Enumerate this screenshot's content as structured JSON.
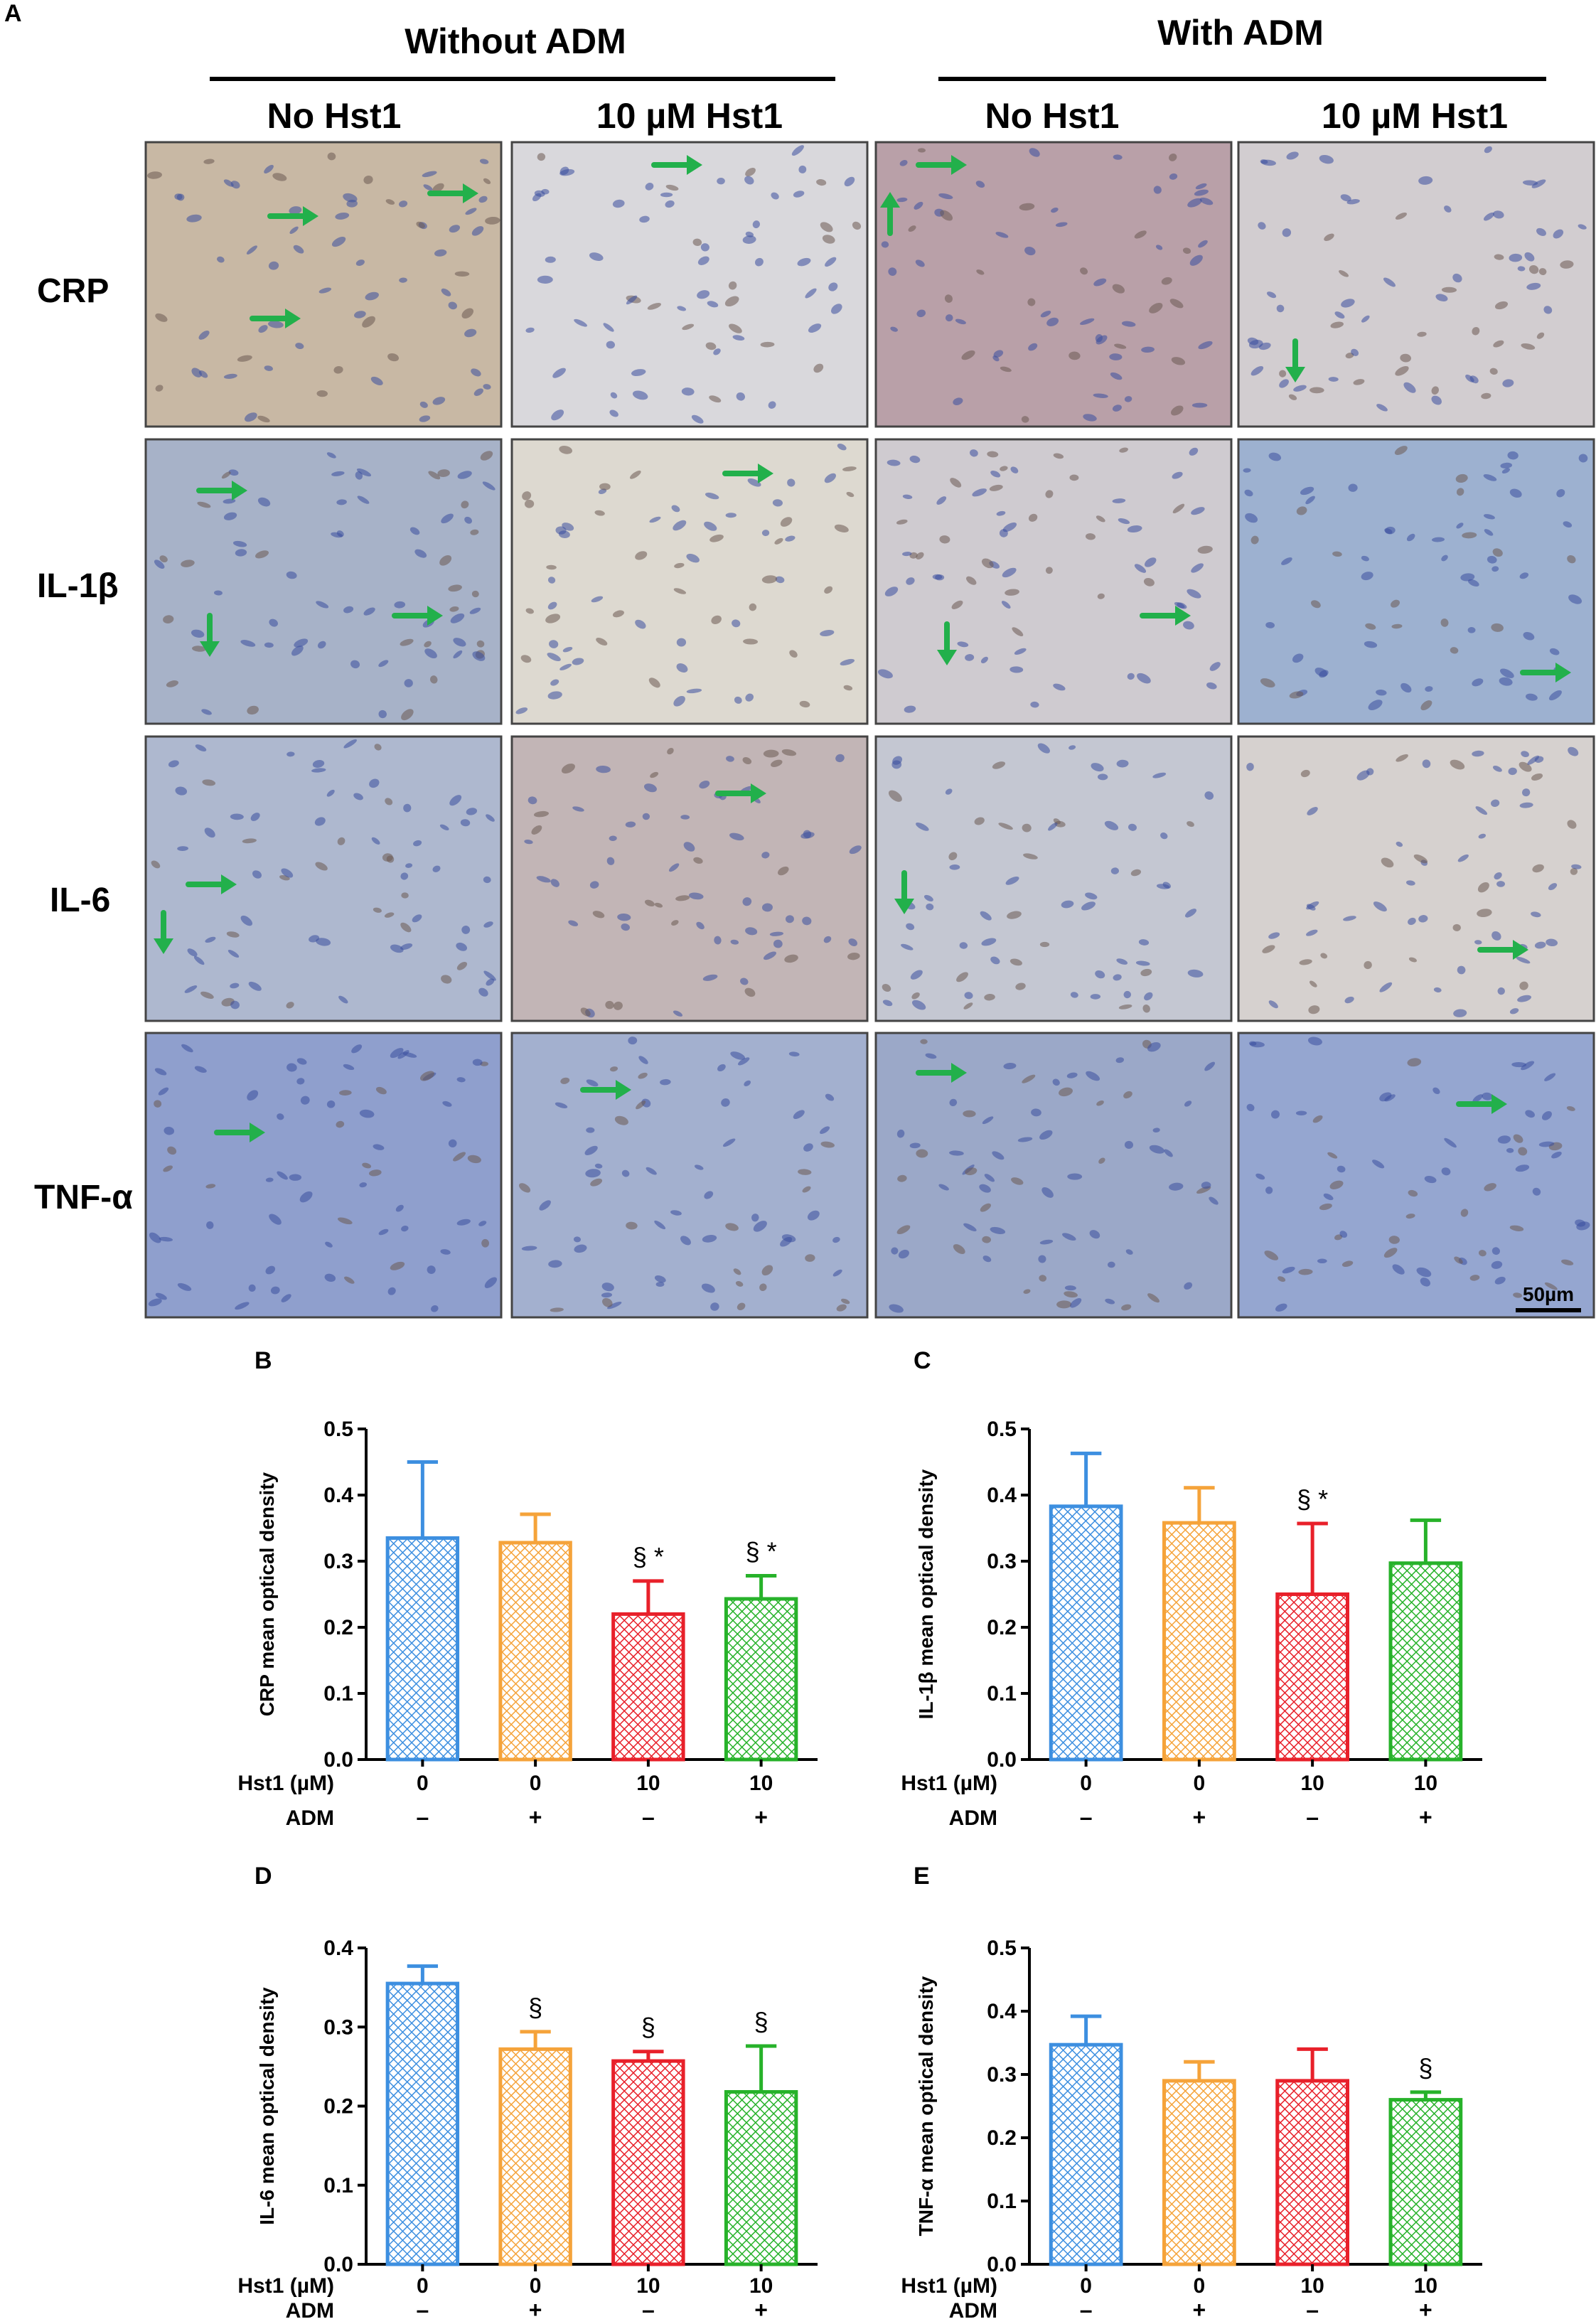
{
  "panel_a": {
    "label": "A",
    "groups": [
      "Without ADM",
      "With ADM"
    ],
    "columns": [
      "No Hst1",
      "10 µM Hst1",
      "No Hst1",
      "10 µM Hst1"
    ],
    "rows": [
      "CRP",
      "IL-1β",
      "IL-6",
      "TNF-α"
    ],
    "scale_bar": "50µm",
    "arrow_color": "#22b04b",
    "tiles": [
      [
        {
          "tint": "#c8b8a4",
          "arrows": [
            [
              0.35,
              0.26,
              "right"
            ],
            [
              0.8,
              0.18,
              "right"
            ],
            [
              0.3,
              0.62,
              "right"
            ]
          ]
        },
        {
          "tint": "#d9d8dc",
          "arrows": [
            [
              0.4,
              0.08,
              "right"
            ]
          ]
        },
        {
          "tint": "#b9a0a8",
          "arrows": [
            [
              0.12,
              0.08,
              "right"
            ],
            [
              0.04,
              0.32,
              "up"
            ]
          ]
        },
        {
          "tint": "#d2cdd0",
          "arrows": [
            [
              0.16,
              0.7,
              "down"
            ]
          ]
        }
      ],
      [
        {
          "tint": "#a7b2c8",
          "arrows": [
            [
              0.15,
              0.18,
              "right"
            ],
            [
              0.18,
              0.62,
              "down"
            ],
            [
              0.7,
              0.62,
              "right"
            ]
          ]
        },
        {
          "tint": "#ddd9d0",
          "arrows": [
            [
              0.6,
              0.12,
              "right"
            ]
          ]
        },
        {
          "tint": "#cfcbd0",
          "arrows": [
            [
              0.2,
              0.65,
              "down"
            ],
            [
              0.75,
              0.62,
              "right"
            ]
          ]
        },
        {
          "tint": "#9db1d0",
          "arrows": [
            [
              0.8,
              0.82,
              "right"
            ]
          ]
        }
      ],
      [
        {
          "tint": "#aeb8cf",
          "arrows": [
            [
              0.05,
              0.62,
              "down"
            ],
            [
              0.12,
              0.52,
              "right"
            ]
          ]
        },
        {
          "tint": "#c2b5b6",
          "arrows": [
            [
              0.58,
              0.2,
              "right"
            ]
          ]
        },
        {
          "tint": "#c4c7d2",
          "arrows": [
            [
              0.08,
              0.48,
              "down"
            ]
          ]
        },
        {
          "tint": "#d6d1cf",
          "arrows": [
            [
              0.68,
              0.75,
              "right"
            ]
          ]
        }
      ],
      [
        {
          "tint": "#8f9fcd",
          "arrows": [
            [
              0.2,
              0.35,
              "right"
            ]
          ]
        },
        {
          "tint": "#a3b0cf",
          "arrows": [
            [
              0.2,
              0.2,
              "right"
            ]
          ]
        },
        {
          "tint": "#9ba8c8",
          "arrows": [
            [
              0.12,
              0.14,
              "right"
            ]
          ]
        },
        {
          "tint": "#95a6d0",
          "arrows": [
            [
              0.62,
              0.25,
              "right"
            ]
          ]
        }
      ]
    ]
  },
  "chart_data": [
    {
      "panel": "B",
      "type": "bar",
      "ylabel": "CRP mean optical density",
      "ylim": [
        0,
        0.5
      ],
      "yticks": [
        "0.0",
        "0.1",
        "0.2",
        "0.3",
        "0.4",
        "0.5"
      ],
      "values": [
        0.335,
        0.328,
        0.22,
        0.243
      ],
      "errors": [
        0.115,
        0.043,
        0.05,
        0.035
      ],
      "annotations": [
        "",
        "",
        "§ *",
        "§ *"
      ]
    },
    {
      "panel": "C",
      "type": "bar",
      "ylabel": "IL-1β mean optical density",
      "ylim": [
        0,
        0.5
      ],
      "yticks": [
        "0.0",
        "0.1",
        "0.2",
        "0.3",
        "0.4",
        "0.5"
      ],
      "values": [
        0.383,
        0.358,
        0.25,
        0.297
      ],
      "errors": [
        0.08,
        0.053,
        0.107,
        0.065
      ],
      "annotations": [
        "",
        "",
        "§ *",
        ""
      ]
    },
    {
      "panel": "D",
      "type": "bar",
      "ylabel": "IL-6 mean optical density",
      "ylim": [
        0,
        0.4
      ],
      "yticks": [
        "0.0",
        "0.1",
        "0.2",
        "0.3",
        "0.4"
      ],
      "values": [
        0.355,
        0.272,
        0.257,
        0.218
      ],
      "errors": [
        0.022,
        0.022,
        0.012,
        0.058
      ],
      "annotations": [
        "",
        "§",
        "§",
        "§"
      ]
    },
    {
      "panel": "E",
      "type": "bar",
      "ylabel": "TNF-α mean optical density",
      "ylim": [
        0,
        0.5
      ],
      "yticks": [
        "0.0",
        "0.1",
        "0.2",
        "0.3",
        "0.4",
        "0.5"
      ],
      "values": [
        0.347,
        0.29,
        0.29,
        0.26
      ],
      "errors": [
        0.045,
        0.03,
        0.05,
        0.012
      ],
      "annotations": [
        "",
        "",
        "",
        "§"
      ]
    }
  ],
  "x_rows": {
    "hst1_label": "Hst1 (µM)",
    "hst1_values": [
      "0",
      "0",
      "10",
      "10"
    ],
    "adm_label": "ADM",
    "adm_values": [
      "–",
      "+",
      "–",
      "+"
    ]
  },
  "bar_colors": [
    "#3d8fe0",
    "#f5a33a",
    "#e8202a",
    "#27b22a"
  ]
}
